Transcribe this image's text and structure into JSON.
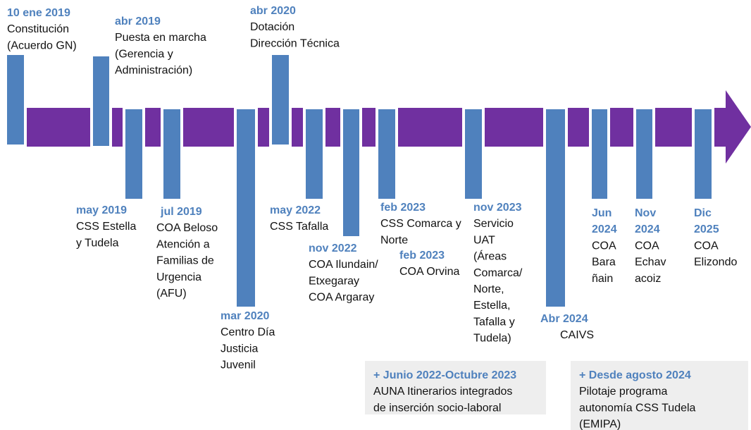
{
  "events": [
    {
      "date": "10 ene 2019",
      "lines": [
        "Constitución",
        "(Acuerdo GN)"
      ]
    },
    {
      "date": "abr 2019",
      "lines": [
        "Puesta en marcha",
        "(Gerencia y",
        "Administración)"
      ]
    },
    {
      "date": "may 2019",
      "lines": [
        "CSS Estella",
        "y Tudela"
      ]
    },
    {
      "date": "jul 2019",
      "lines": [
        "COA Beloso",
        "Atención a",
        "Familias de",
        "Urgencia",
        "(AFU)"
      ]
    },
    {
      "date": "mar 2020",
      "lines": [
        "Centro Día",
        "Justicia",
        "Juvenil"
      ]
    },
    {
      "date": "abr 2020",
      "lines": [
        "Dotación",
        "Dirección Técnica"
      ]
    },
    {
      "date": "may 2022",
      "lines": [
        "CSS Tafalla"
      ]
    },
    {
      "date": "nov 2022",
      "lines": [
        "COA Ilundain/",
        "Etxegaray",
        "COA Argaray"
      ]
    },
    {
      "date": "feb 2023",
      "lines": [
        "CSS Comarca y",
        "Norte"
      ]
    },
    {
      "date": "feb 2023",
      "lines": [
        "COA Orvina"
      ]
    },
    {
      "date": "nov 2023",
      "lines": [
        "Servicio",
        "UAT",
        "(Áreas",
        "Comarca/",
        "Norte,",
        "Estella,",
        "Tafalla y",
        "Tudela)"
      ]
    },
    {
      "date": "Abr 2024",
      "lines": [
        "CAIVS"
      ]
    },
    {
      "date": "Jun 2024",
      "lines": [
        "COA",
        "Bara",
        "ñain"
      ]
    },
    {
      "date": "Nov 2024",
      "lines": [
        "COA",
        "Echav",
        "acoiz"
      ]
    },
    {
      "date": "Dic 2025",
      "lines": [
        "COA",
        "Elizondo"
      ]
    }
  ],
  "notes": [
    {
      "title": "+ Junio 2022-Octubre 2023",
      "lines": [
        "AUNA Itinerarios integrados",
        "de inserción socio-laboral"
      ]
    },
    {
      "title": "+ Desde agosto 2024",
      "lines": [
        "Pilotaje programa",
        "autonomía CSS Tudela",
        "(EMIPA)"
      ]
    }
  ]
}
